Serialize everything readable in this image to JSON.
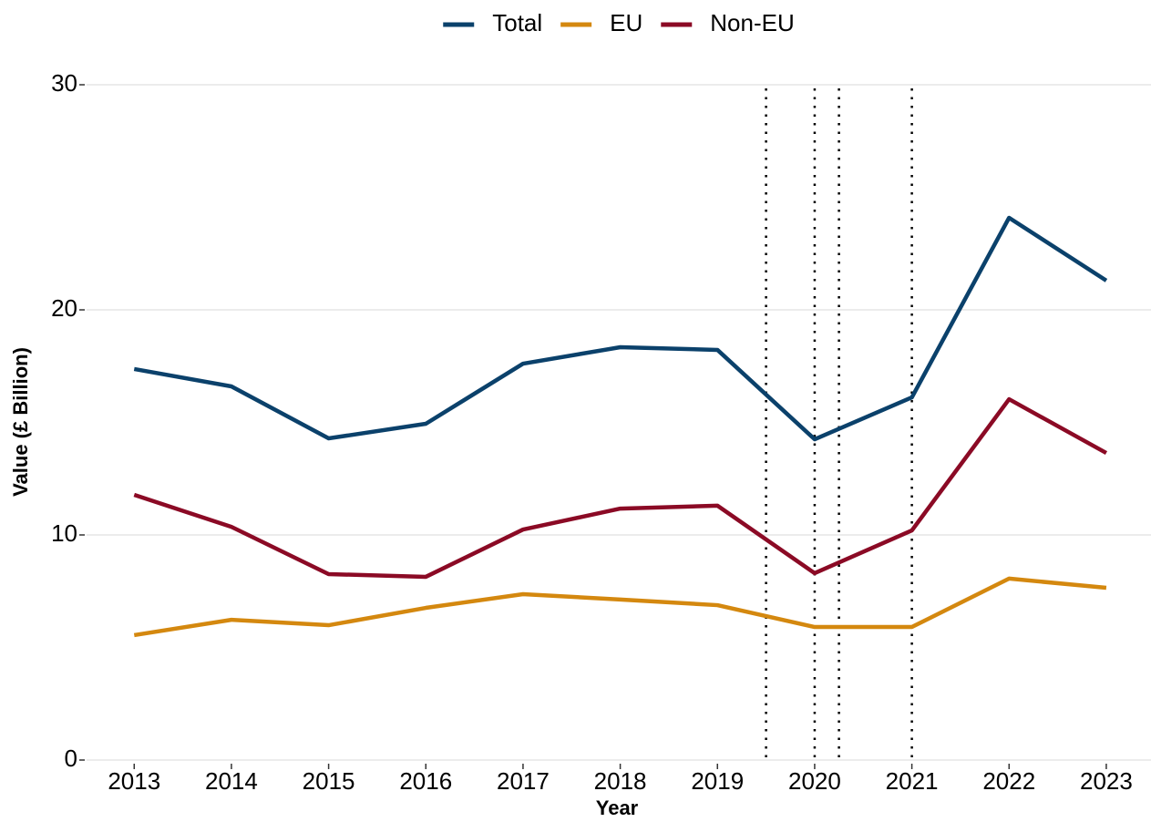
{
  "chart_data": {
    "type": "line",
    "xlabel": "Year",
    "ylabel": "Value (£ Billion)",
    "x": [
      2013,
      2014,
      2015,
      2016,
      2017,
      2018,
      2019,
      2020,
      2021,
      2022,
      2023
    ],
    "series": [
      {
        "name": "Total",
        "color": "#0b416b",
        "values": [
          17.37,
          16.6,
          14.29,
          14.94,
          17.61,
          18.34,
          18.22,
          14.25,
          16.11,
          24.09,
          21.3
        ]
      },
      {
        "name": "EU",
        "color": "#d4880f",
        "values": [
          5.55,
          6.23,
          5.99,
          6.76,
          7.37,
          7.13,
          6.88,
          5.91,
          5.91,
          8.06,
          7.65
        ]
      },
      {
        "name": "Non-EU",
        "color": "#8b0a25",
        "values": [
          11.78,
          10.36,
          8.26,
          8.14,
          10.24,
          11.17,
          11.3,
          8.3,
          10.2,
          16.03,
          13.64
        ]
      }
    ],
    "vlines": [
      2019.5,
      2020,
      2020.25,
      2021
    ],
    "xlim": [
      2012.51,
      2023.46
    ],
    "xticks": [
      2013,
      2014,
      2015,
      2016,
      2017,
      2018,
      2019,
      2020,
      2021,
      2022,
      2023
    ],
    "ylim": [
      0,
      30
    ],
    "yticks": [
      0,
      10,
      20,
      30
    ],
    "grid": true,
    "legend": "top"
  }
}
